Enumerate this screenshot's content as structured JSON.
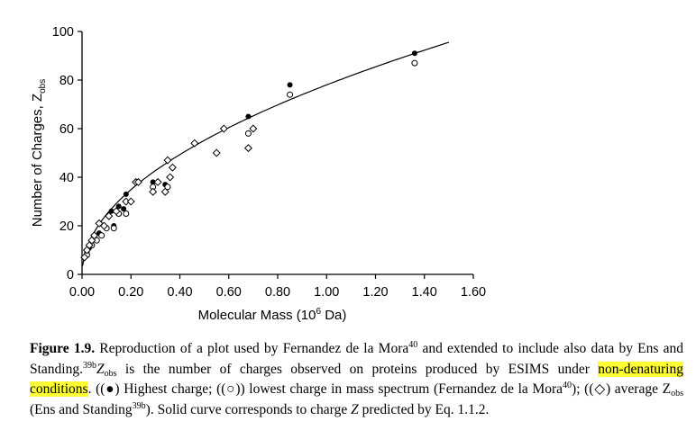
{
  "chart_data": {
    "type": "scatter",
    "xlabel": "Molecular Mass (10",
    "xlabel_sup": "6",
    "xlabel_tail": " Da)",
    "ylabel": "Number of Charges, Z",
    "ylabel_sub": "obs",
    "xlim": [
      0,
      1.6
    ],
    "ylim": [
      0,
      100
    ],
    "x_ticks": [
      "0.00",
      "0.20",
      "0.40",
      "0.60",
      "0.80",
      "1.00",
      "1.20",
      "1.40",
      "1.60"
    ],
    "y_ticks": [
      "0",
      "20",
      "40",
      "60",
      "80",
      "100"
    ],
    "grid": false,
    "legend": "none",
    "series": [
      {
        "marker": "filled-circle",
        "points": [
          [
            0.02,
            9
          ],
          [
            0.03,
            11
          ],
          [
            0.05,
            15
          ],
          [
            0.07,
            17
          ],
          [
            0.1,
            19
          ],
          [
            0.12,
            26
          ],
          [
            0.13,
            20
          ],
          [
            0.15,
            28
          ],
          [
            0.17,
            27
          ],
          [
            0.18,
            33
          ],
          [
            0.29,
            38
          ],
          [
            0.34,
            37
          ],
          [
            0.68,
            65
          ],
          [
            0.85,
            78
          ],
          [
            1.36,
            91
          ]
        ]
      },
      {
        "marker": "open-circle",
        "points": [
          [
            0.02,
            8
          ],
          [
            0.04,
            12
          ],
          [
            0.06,
            14
          ],
          [
            0.08,
            16
          ],
          [
            0.1,
            19
          ],
          [
            0.13,
            19
          ],
          [
            0.15,
            25
          ],
          [
            0.18,
            25
          ],
          [
            0.29,
            36
          ],
          [
            0.35,
            36
          ],
          [
            0.68,
            58
          ],
          [
            0.85,
            74
          ],
          [
            1.36,
            87
          ]
        ]
      },
      {
        "marker": "open-diamond",
        "points": [
          [
            0.01,
            7
          ],
          [
            0.02,
            10
          ],
          [
            0.03,
            12
          ],
          [
            0.04,
            14
          ],
          [
            0.05,
            16
          ],
          [
            0.07,
            21
          ],
          [
            0.09,
            20
          ],
          [
            0.11,
            24
          ],
          [
            0.14,
            26
          ],
          [
            0.18,
            30
          ],
          [
            0.2,
            30
          ],
          [
            0.22,
            38
          ],
          [
            0.23,
            38
          ],
          [
            0.29,
            34
          ],
          [
            0.31,
            38
          ],
          [
            0.34,
            34
          ],
          [
            0.35,
            47
          ],
          [
            0.36,
            40
          ],
          [
            0.37,
            44
          ],
          [
            0.46,
            54
          ],
          [
            0.55,
            50
          ],
          [
            0.58,
            60
          ],
          [
            0.68,
            52
          ],
          [
            0.7,
            60
          ]
        ]
      },
      {
        "marker": "curve",
        "formula": "Z = 0.078 * M^0.5",
        "from": 0.002,
        "to": 1.5
      }
    ]
  },
  "caption": {
    "label": "Figure 1.9.",
    "t1": " Reproduction of a plot used by Fernandez de la Mora",
    "ref40a": "40",
    "t2": " and extended to include also data by Ens and Standing.",
    "ref39b_a": "39b",
    "z": "Z",
    "obs_a": "obs",
    "t3": " is the number of charges observed on proteins produced by ESIMS under ",
    "hl": "non-denaturing conditions",
    "t4": ". ((",
    "sym_filled": "●",
    "t5": ") Highest charge; ((",
    "sym_open": "○",
    "t6": ")) lowest charge in mass spectrum (Fernandez de la Mora",
    "ref40b": "40",
    "t7": "); ((",
    "sym_diamond": "◇",
    "t8": ") average Z",
    "obs_b": "obs",
    "t9": " (Ens and Standing",
    "ref39b_b": "39b",
    "t10": "). Solid curve corresponds to charge ",
    "z2": "Z",
    "t11": " predicted by Eq. 1.1.2."
  }
}
